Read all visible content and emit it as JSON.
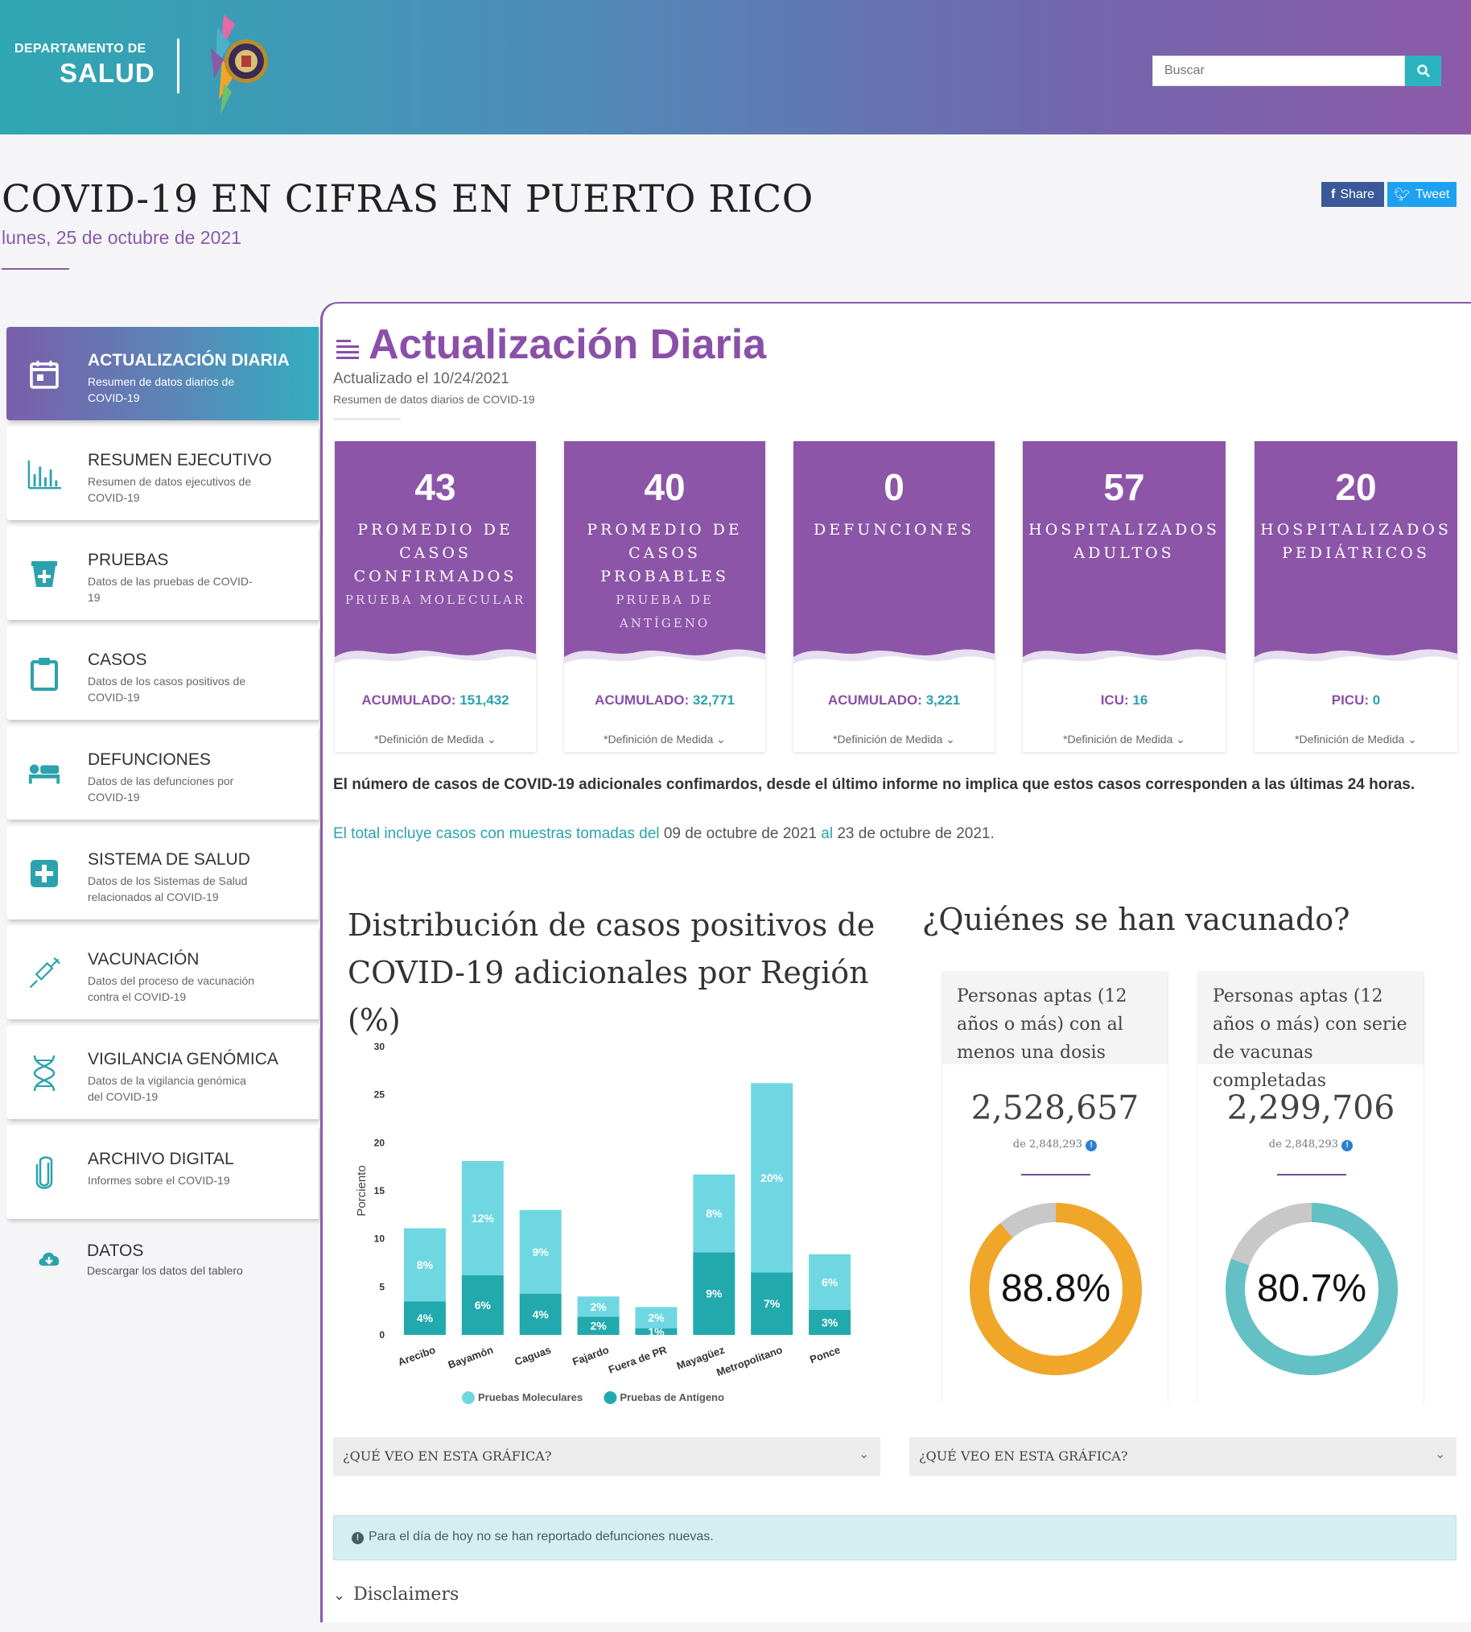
{
  "header": {
    "dept_line1": "DEPARTAMENTO DE",
    "dept_line2": "SALUD",
    "search_placeholder": "Buscar"
  },
  "page": {
    "title": "COVID-19 EN CIFRAS EN PUERTO RICO",
    "date": "lunes, 25 de octubre de 2021",
    "share_label": "Share",
    "tweet_label": "Tweet"
  },
  "sidebar": {
    "items": [
      {
        "title": "ACTUALIZACIÓN DIARIA",
        "subtitle": "Resumen de datos diarios de COVID-19"
      },
      {
        "title": "RESUMEN EJECUTIVO",
        "subtitle": "Resumen de datos ejecutivos de COVID-19"
      },
      {
        "title": "PRUEBAS",
        "subtitle": "Datos de las pruebas de COVID-19"
      },
      {
        "title": "CASOS",
        "subtitle": "Datos de los casos positivos de COVID-19"
      },
      {
        "title": "DEFUNCIONES",
        "subtitle": "Datos de las defunciones por COVID-19"
      },
      {
        "title": "SISTEMA DE SALUD",
        "subtitle": "Datos de los Sistemas de Salud relacionados al COVID-19"
      },
      {
        "title": "VACUNACIÓN",
        "subtitle": "Datos del proceso de vacunación contra el COVID-19"
      },
      {
        "title": "VIGILANCIA GENÓMICA",
        "subtitle": "Datos de la vigilancia genómica del COVID-19"
      },
      {
        "title": "ARCHIVO DIGITAL",
        "subtitle": "Informes sobre el COVID-19"
      }
    ],
    "datos": {
      "title": "DATOS",
      "subtitle": "Descargar los datos del tablero"
    }
  },
  "main": {
    "title": "Actualización Diaria",
    "updated": "Actualizado el 10/24/2021",
    "subtitle": "Resumen de datos diarios de COVID-19",
    "cards": [
      {
        "number": "43",
        "label": "PROMEDIO DE CASOS CONFIRMADOS",
        "sublabel": "PRUEBA MOLECULAR",
        "acc_label": "ACUMULADO:",
        "acc_value": "151,432",
        "definition": "*Definición de Medida"
      },
      {
        "number": "40",
        "label": "PROMEDIO DE CASOS PROBABLES",
        "sublabel": "PRUEBA DE ANTÍGENO",
        "acc_label": "ACUMULADO:",
        "acc_value": "32,771",
        "definition": "*Definición de Medida"
      },
      {
        "number": "0",
        "label": "DEFUNCIONES",
        "sublabel": "",
        "acc_label": "ACUMULADO:",
        "acc_value": "3,221",
        "definition": "*Definición de Medida"
      },
      {
        "number": "57",
        "label": "HOSPITALIZADOS ADULTOS",
        "sublabel": "",
        "acc_label": "ICU:",
        "acc_value": "16",
        "definition": "*Definición de Medida"
      },
      {
        "number": "20",
        "label": "HOSPITALIZADOS PEDIÁTRICOS",
        "sublabel": "",
        "acc_label": "PICU:",
        "acc_value": "0",
        "definition": "*Definición de Medida"
      }
    ],
    "note_bold": "El número de casos de COVID-19 adicionales confimardos, desde el último informe no implica que estos casos corresponden a las últimas 24 horas.",
    "note_prefix": "El total incluye casos con muestras tomadas del",
    "note_from": "09 de octubre de 2021",
    "note_mid": "al",
    "note_to": "23 de octubre de 2021."
  },
  "distribution": {
    "title": "Distribución de casos positivos de COVID-19 adicionales por Región (%)",
    "faq": "¿QUÉ VEO EN ESTA GRÁFICA?"
  },
  "vaccination": {
    "title": "¿Quiénes se han vacunado?",
    "faq": "¿QUÉ VEO EN ESTA GRÁFICA?",
    "cards": [
      {
        "header": "Personas aptas (12 años o más) con al menos una dosis",
        "value": "2,528,657",
        "of": "de 2,848,293",
        "percent_label": "88.8%",
        "percent": 88.8,
        "color": "#f0a629"
      },
      {
        "header": "Personas aptas (12 años o más) con serie de vacunas completadas",
        "value": "2,299,706",
        "of": "de 2,848,293",
        "percent_label": "80.7%",
        "percent": 80.7,
        "color": "#63c1c5"
      }
    ]
  },
  "alert": {
    "text": "Para el día de hoy no se han reportado defunciones nuevas."
  },
  "disclaimers": {
    "label": "Disclaimers"
  },
  "chart_data": {
    "type": "bar",
    "stacked": true,
    "title": "Distribución de casos positivos de COVID-19 adicionales por Región (%)",
    "ylabel": "Porciento",
    "ylim": [
      0,
      30
    ],
    "yticks": [
      0,
      5,
      10,
      15,
      20,
      25,
      30
    ],
    "categories": [
      "Arecibo",
      "Bayamón",
      "Caguas",
      "Fajardo",
      "Fuera de PR",
      "Mayagüez",
      "Metropolitano",
      "Ponce"
    ],
    "series": [
      {
        "name": "Pruebas de Antígeno",
        "color": "#22a9ad",
        "values": [
          3.5,
          6.2,
          4.3,
          1.9,
          0.7,
          8.6,
          6.5,
          2.6
        ],
        "labels": [
          "4%",
          "6%",
          "4%",
          "2%",
          "1%",
          "9%",
          "7%",
          "3%"
        ]
      },
      {
        "name": "Pruebas Moleculares",
        "color": "#6fd7e2",
        "values": [
          7.6,
          11.9,
          8.7,
          2.1,
          2.2,
          8.1,
          19.7,
          5.8
        ],
        "labels": [
          "8%",
          "12%",
          "9%",
          "2%",
          "2%",
          "8%",
          "20%",
          "6%"
        ]
      }
    ],
    "legend": [
      "Pruebas Moleculares",
      "Pruebas de Antígeno"
    ],
    "legend_position": "bottom",
    "grid": false
  }
}
